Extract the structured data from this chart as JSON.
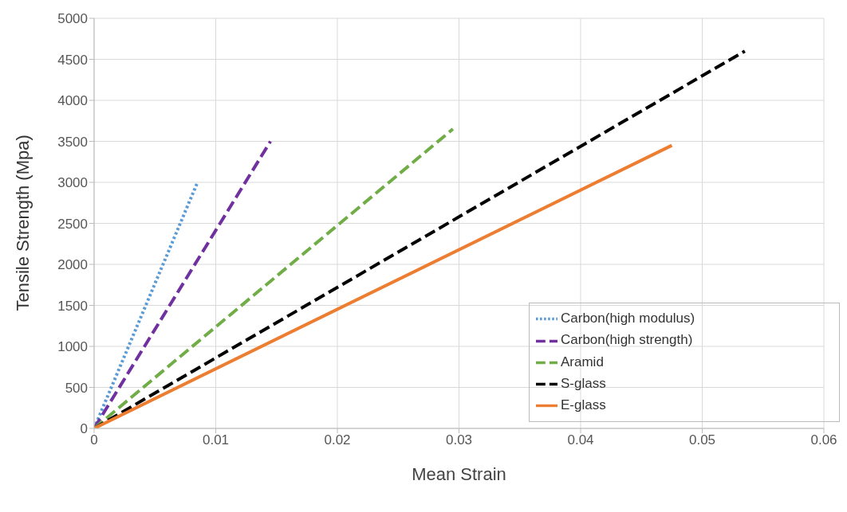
{
  "chart_data": {
    "type": "line",
    "xlabel": "Mean Strain",
    "ylabel": "Tensile Strength (Mpa)",
    "xlim": [
      0,
      0.06
    ],
    "xticks": [
      0,
      0.01,
      0.02,
      0.03,
      0.04,
      0.05,
      0.06
    ],
    "ylim": [
      0,
      5000
    ],
    "yticks": [
      0,
      500,
      1000,
      1500,
      2000,
      2500,
      3000,
      3500,
      4000,
      4500,
      5000
    ],
    "grid": true,
    "legend": "bottom right",
    "marker": "none",
    "series": [
      {
        "name": "Carbon(high modulus)",
        "color": "#5b9bd5",
        "line_style": "dotted",
        "x": [
          0,
          0.0085
        ],
        "values": [
          0,
          3000
        ]
      },
      {
        "name": "Carbon(high strength)",
        "color": "#7030a0",
        "line_style": "dashed",
        "x": [
          0,
          0.0145
        ],
        "values": [
          0,
          3500
        ]
      },
      {
        "name": "Aramid",
        "color": "#70ad47",
        "line_style": "dashed",
        "x": [
          0,
          0.0295
        ],
        "values": [
          0,
          3650
        ]
      },
      {
        "name": "S-glass",
        "color": "#000000",
        "line_style": "dashed",
        "x": [
          0,
          0.0535
        ],
        "values": [
          0,
          4600
        ]
      },
      {
        "name": "E-glass",
        "color": "#ed7d31",
        "line_style": "solid",
        "x": [
          0,
          0.0475
        ],
        "values": [
          0,
          3450
        ]
      }
    ]
  }
}
